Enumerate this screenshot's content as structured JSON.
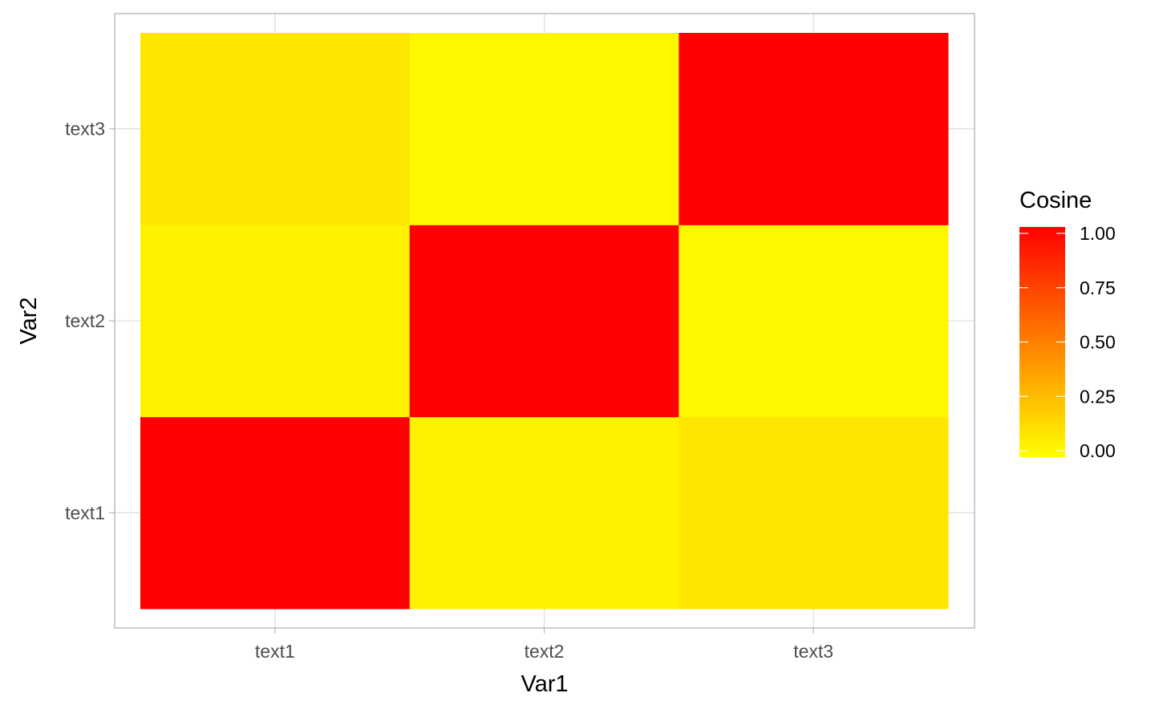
{
  "chart_data": {
    "type": "heatmap",
    "x_categories": [
      "text1",
      "text2",
      "text3"
    ],
    "y_categories": [
      "text1",
      "text2",
      "text3"
    ],
    "xlabel": "Var1",
    "ylabel": "Var2",
    "values": [
      {
        "x": "text1",
        "y": "text1",
        "value": 1.0
      },
      {
        "x": "text2",
        "y": "text1",
        "value": 0.05
      },
      {
        "x": "text3",
        "y": "text1",
        "value": 0.1
      },
      {
        "x": "text1",
        "y": "text2",
        "value": 0.05
      },
      {
        "x": "text2",
        "y": "text2",
        "value": 1.0
      },
      {
        "x": "text3",
        "y": "text2",
        "value": 0.03
      },
      {
        "x": "text1",
        "y": "text3",
        "value": 0.1
      },
      {
        "x": "text2",
        "y": "text3",
        "value": 0.03
      },
      {
        "x": "text3",
        "y": "text3",
        "value": 1.0
      }
    ],
    "legend": {
      "title": "Cosine",
      "breaks": [
        1.0,
        0.75,
        0.5,
        0.25,
        0.0
      ],
      "labels": [
        "1.00",
        "0.75",
        "0.50",
        "0.25",
        "0.00"
      ],
      "placement": "right"
    },
    "color_scale": {
      "low": "#ffff00",
      "high": "#ff0000",
      "min": 0,
      "max": 1
    },
    "grid": true
  }
}
